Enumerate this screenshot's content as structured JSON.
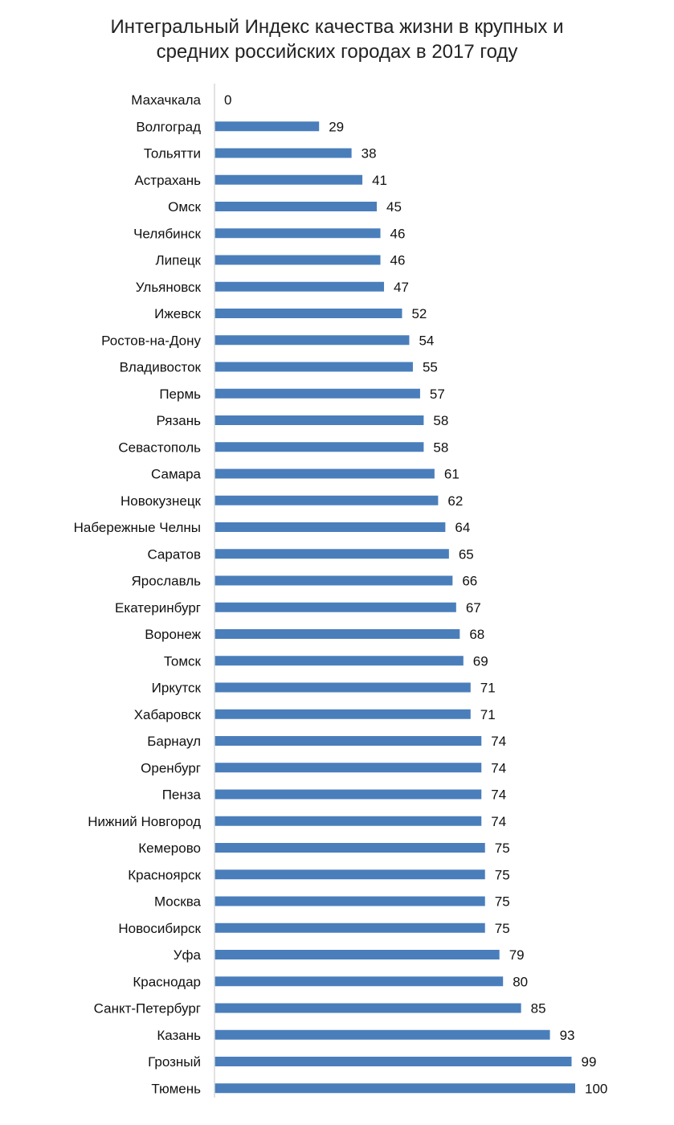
{
  "chart_data": {
    "type": "bar",
    "orientation": "horizontal",
    "title_lines": [
      "Интегральный Индекс качества жизни в крупных и",
      "средних российских городах в 2017 году"
    ],
    "categories": [
      "Махачкала",
      "Волгоград",
      "Тольятти",
      "Астрахань",
      "Омск",
      "Челябинск",
      "Липецк",
      "Ульяновск",
      "Ижевск",
      "Ростов-на-Дону",
      "Владивосток",
      "Пермь",
      "Рязань",
      "Севастополь",
      "Самара",
      "Новокузнецк",
      "Набережные Челны",
      "Саратов",
      "Ярославль",
      "Екатеринбург",
      "Воронеж",
      "Томск",
      "Иркутск",
      "Хабаровск",
      "Барнаул",
      "Оренбург",
      "Пенза",
      "Нижний Новгород",
      "Кемерово",
      "Красноярск",
      "Москва",
      "Новосибирск",
      "Уфа",
      "Краснодар",
      "Санкт-Петербург",
      "Казань",
      "Грозный",
      "Тюмень"
    ],
    "values": [
      0,
      29,
      38,
      41,
      45,
      46,
      46,
      47,
      52,
      54,
      55,
      57,
      58,
      58,
      61,
      62,
      64,
      65,
      66,
      67,
      68,
      69,
      71,
      71,
      74,
      74,
      74,
      74,
      75,
      75,
      75,
      75,
      79,
      80,
      85,
      93,
      99,
      100
    ],
    "value_labels": [
      "0",
      "29",
      "38",
      "41",
      "45",
      "46",
      "46",
      "47",
      "52",
      "54",
      "55",
      "57",
      "58",
      "58",
      "61",
      "62",
      "64",
      "65",
      "66",
      "67",
      "68",
      "69",
      "71",
      "71",
      "74",
      "74",
      "74",
      "74",
      "75",
      "75",
      "75",
      "75",
      "79",
      "80",
      "85",
      "93",
      "99",
      "100"
    ],
    "xlim": [
      0,
      100
    ],
    "grid": false,
    "legend": "none",
    "bar_color": "#4a7ebb",
    "axis_color": "#d9d9d9"
  }
}
